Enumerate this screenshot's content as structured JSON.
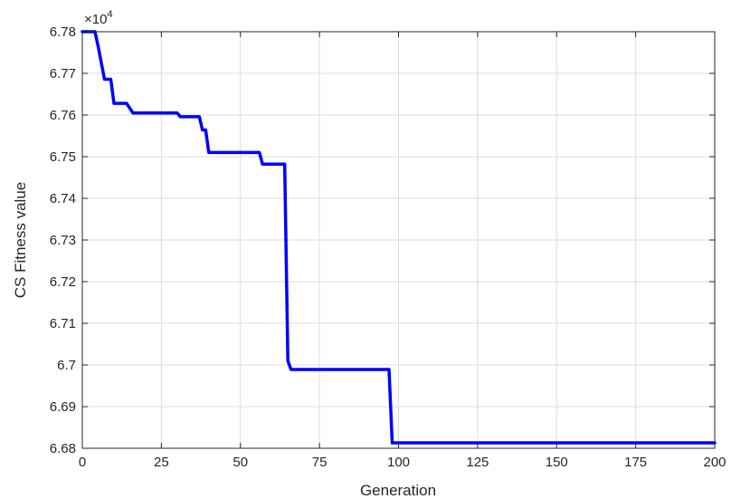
{
  "chart_data": {
    "type": "line",
    "title": "",
    "xlabel": "Generation",
    "ylabel": "CS Fitness value",
    "y_multiplier": {
      "times": "×10",
      "power": "4"
    },
    "xlim": [
      0,
      200
    ],
    "ylim": [
      6.68,
      6.78
    ],
    "grid": true,
    "x_ticks": [
      "0",
      "25",
      "50",
      "75",
      "100",
      "125",
      "150",
      "175",
      "200"
    ],
    "y_ticks": [
      "6.68",
      "6.69",
      "6.7",
      "6.71",
      "6.72",
      "6.73",
      "6.74",
      "6.75",
      "6.76",
      "6.77",
      "6.78"
    ],
    "series": [
      {
        "color": "#0000ff",
        "x": [
          0,
          4,
          5,
          7,
          9,
          10,
          14,
          16,
          30,
          31,
          37,
          38,
          39,
          40,
          56,
          57,
          64,
          65,
          66,
          97,
          98,
          200
        ],
        "y": [
          6.78,
          6.78,
          6.7765,
          6.7686,
          6.7686,
          6.7628,
          6.7628,
          6.7605,
          6.7605,
          6.7596,
          6.7596,
          6.7564,
          6.7564,
          6.751,
          6.751,
          6.7482,
          6.7482,
          6.701,
          6.6989,
          6.6989,
          6.6813,
          6.6813
        ]
      }
    ]
  }
}
